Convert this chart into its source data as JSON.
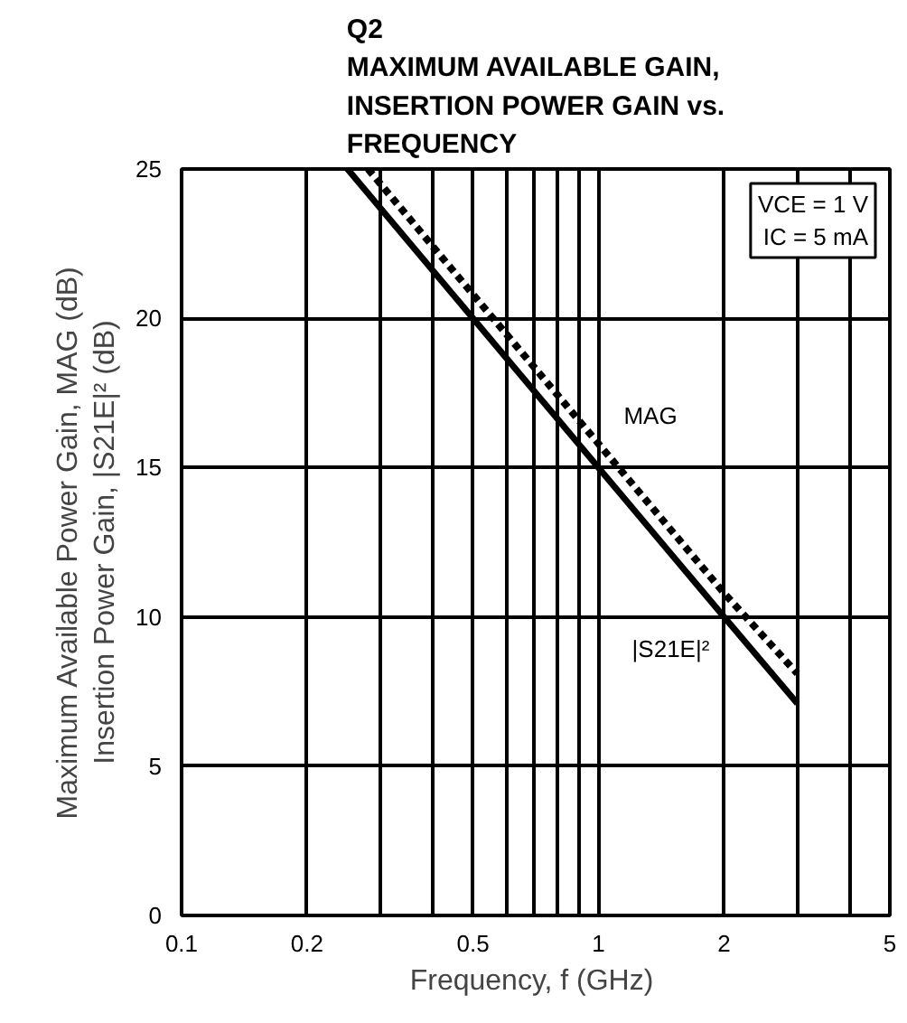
{
  "chart_data": {
    "type": "line",
    "title": "Q2\nMAXIMUM AVAILABLE GAIN,\nINSERTION POWER GAIN vs.\nFREQUENCY",
    "xlabel": "Frequency, f  (GHz)",
    "ylabel": "Maximum Available Power Gain, MAG (dB)\nInsertion Power Gain, |S21E|² (dB)",
    "log": "x",
    "xlim": [
      0.1,
      5
    ],
    "ylim": [
      0,
      25
    ],
    "xticks": [
      0.1,
      0.2,
      {
        "value": 0.3,
        "label": null
      },
      {
        "value": 0.4,
        "label": null
      },
      0.5,
      {
        "value": 0.6,
        "label": null
      },
      {
        "value": 0.7,
        "label": null
      },
      {
        "value": 0.8,
        "label": null
      },
      {
        "value": 0.9,
        "label": null
      },
      1,
      2,
      {
        "value": 3,
        "label": null
      },
      {
        "value": 4,
        "label": null
      },
      5
    ],
    "yticks": [
      0,
      5,
      10,
      15,
      20,
      25
    ],
    "grid": true,
    "marker": "none",
    "series": [
      {
        "name": "|S21E|²",
        "color": "#000000",
        "line_style": "solid",
        "x": [
          0.25,
          0.5,
          1,
          2,
          3
        ],
        "values": [
          25,
          20,
          15,
          10,
          7.1
        ]
      },
      {
        "name": "MAG",
        "color": "#000000",
        "line_style": "dashed",
        "x": [
          0.28,
          0.5,
          1,
          2,
          3
        ],
        "values": [
          25,
          20.8,
          15.8,
          10.8,
          8.1
        ]
      }
    ],
    "annotations": [
      "VCE = 1 V\nIC = 5 mA"
    ]
  }
}
